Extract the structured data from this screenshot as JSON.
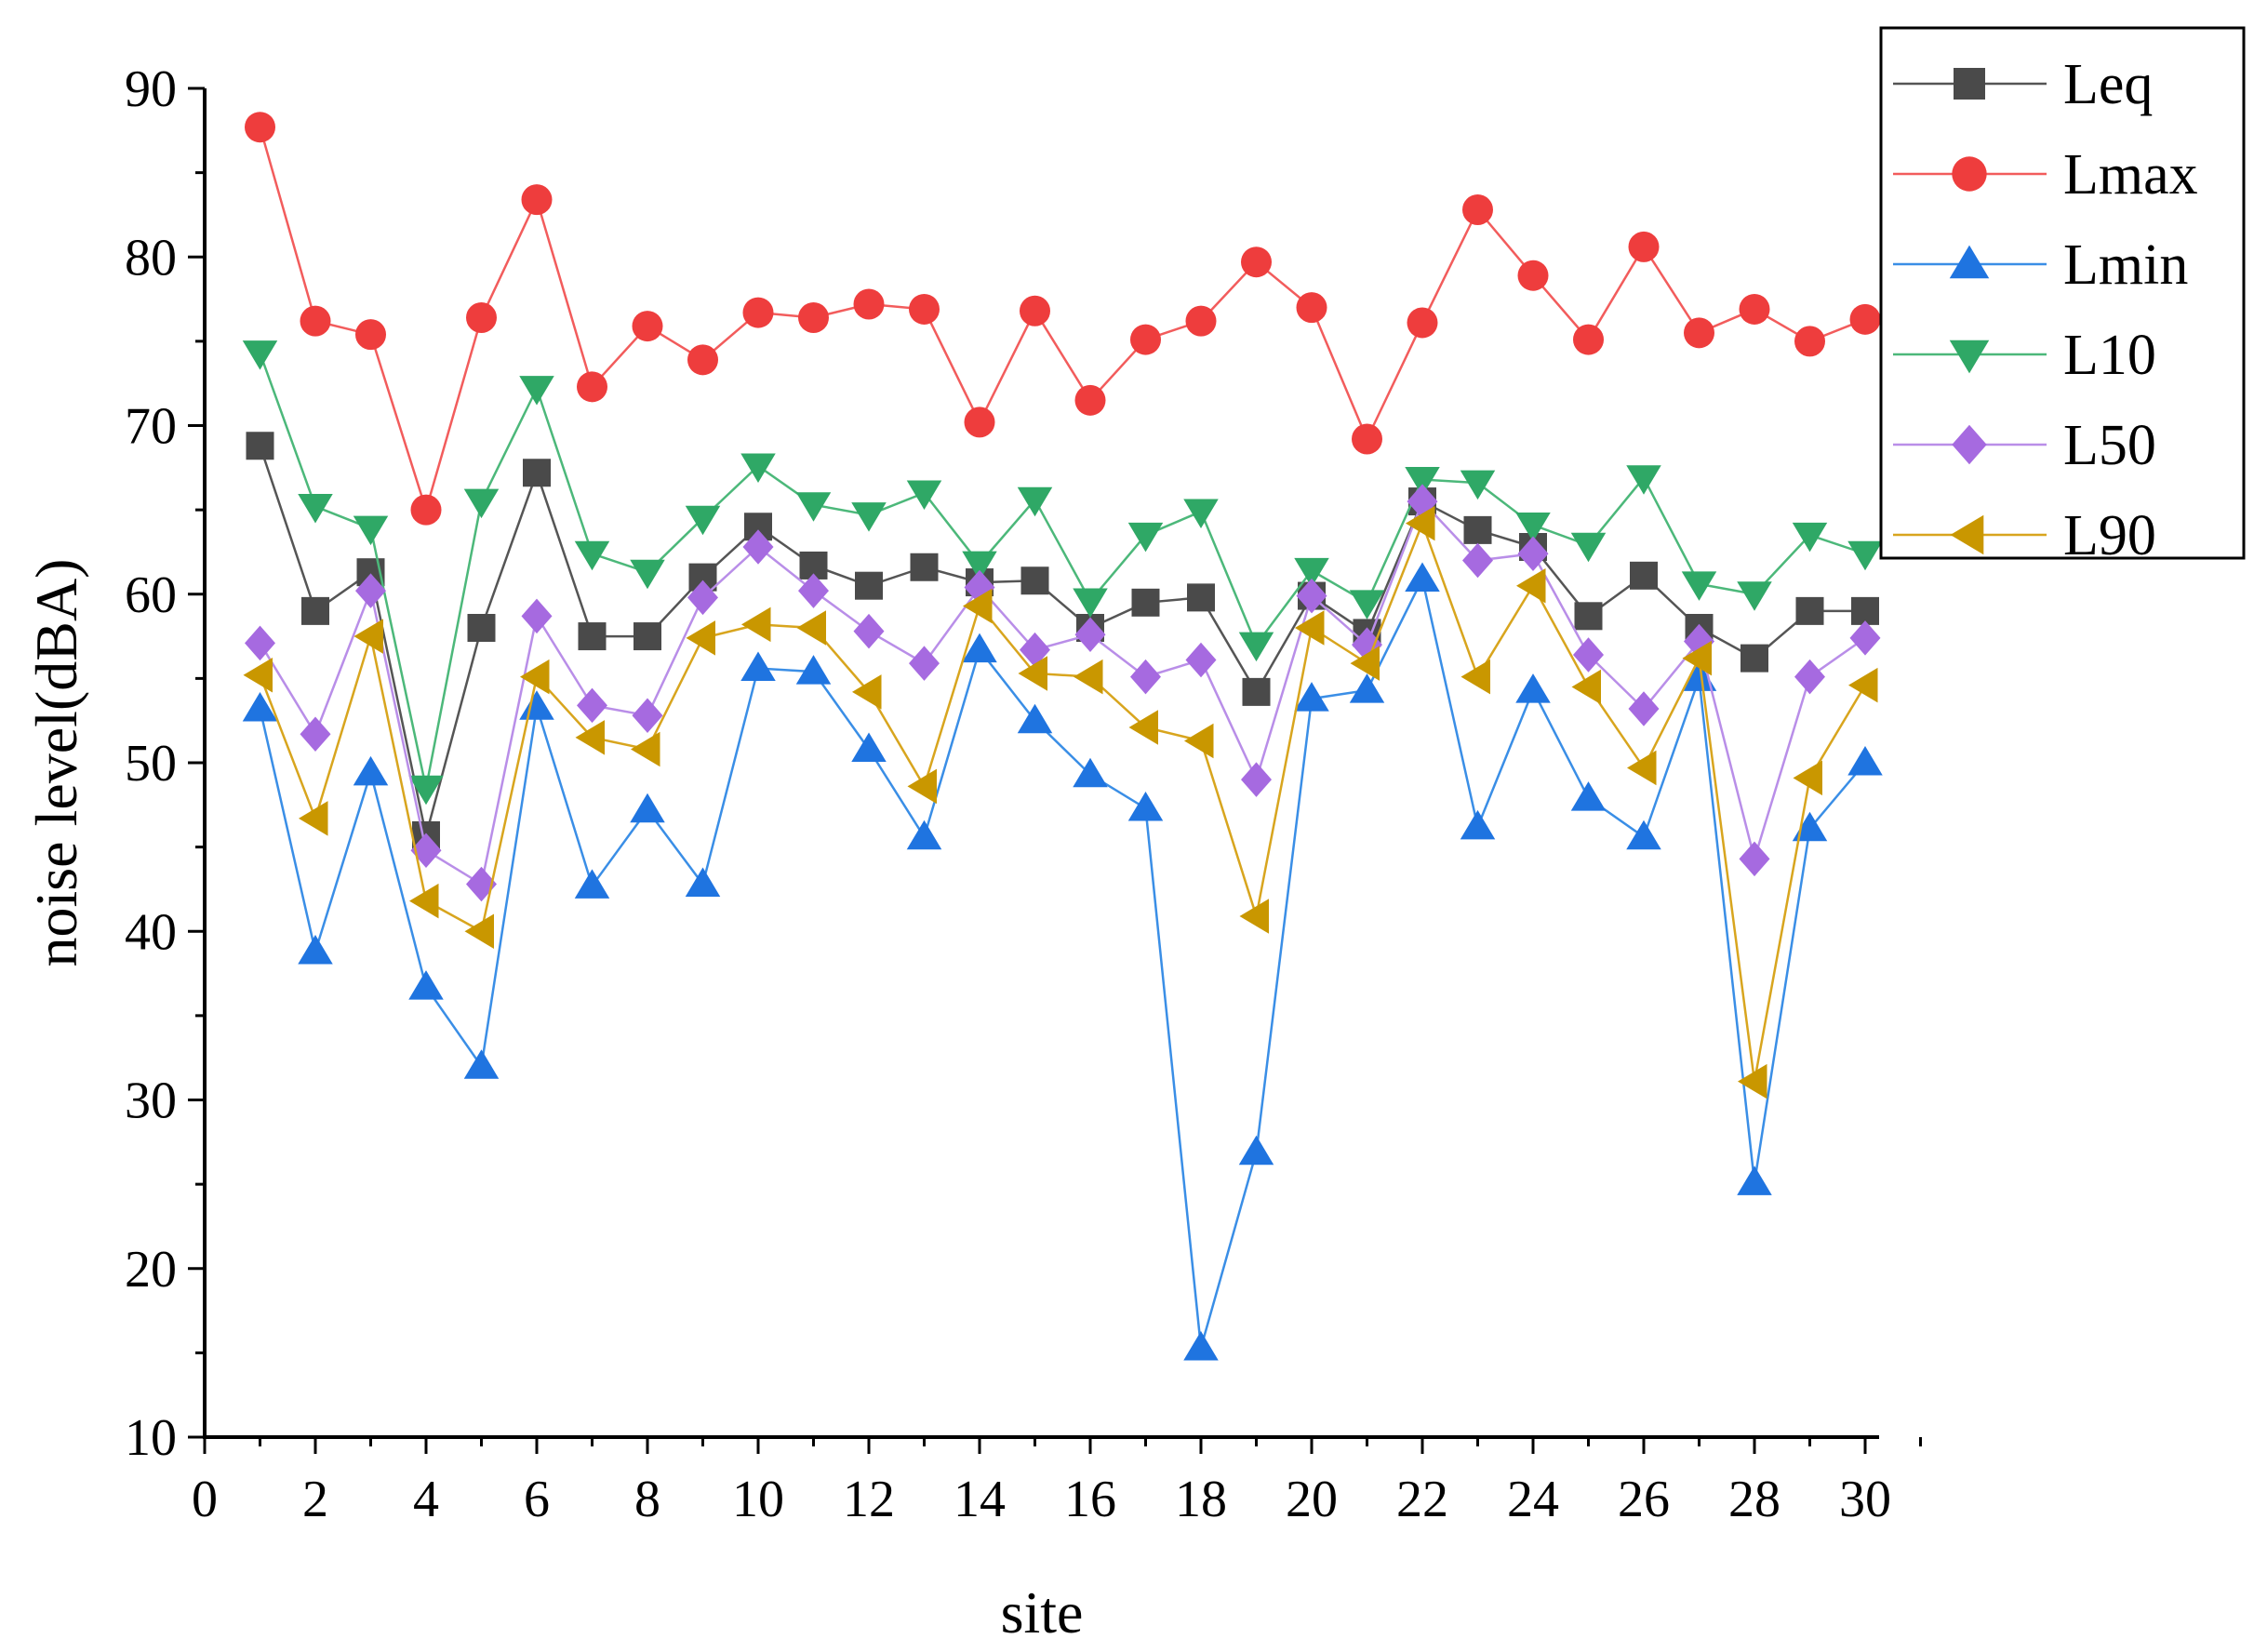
{
  "chart_data": {
    "type": "line",
    "title": "",
    "xlabel": "site",
    "ylabel": "noise level(dBA)",
    "xlim": [
      0,
      31
    ],
    "ylim": [
      10,
      90
    ],
    "x_ticks": [
      0,
      2,
      4,
      6,
      8,
      10,
      12,
      14,
      16,
      18,
      20,
      22,
      24,
      26,
      28,
      30
    ],
    "y_ticks": [
      10,
      20,
      30,
      40,
      50,
      60,
      70,
      80,
      90
    ],
    "legend_position": "top-right",
    "x": [
      1,
      2,
      3,
      4,
      5,
      6,
      7,
      8,
      9,
      10,
      11,
      12,
      13,
      14,
      15,
      16,
      17,
      18,
      19,
      20,
      21,
      22,
      23,
      24,
      25,
      26,
      27,
      28,
      29,
      30
    ],
    "series": [
      {
        "name": "Leq",
        "marker": "square",
        "line_color": "#555555",
        "marker_color": "#4a4a4a",
        "values": [
          68.8,
          59.0,
          61.3,
          45.7,
          58.0,
          67.2,
          57.5,
          57.5,
          61.0,
          64.0,
          61.7,
          60.5,
          61.6,
          60.7,
          60.8,
          58.0,
          59.5,
          59.8,
          54.2,
          59.9,
          57.7,
          65.5,
          63.8,
          62.8,
          58.7,
          61.1,
          58.0,
          56.2,
          59.0,
          59.0
        ]
      },
      {
        "name": "Lmax",
        "marker": "circle",
        "line_color": "#f25c5c",
        "marker_color": "#ee3d3d",
        "values": [
          87.7,
          76.2,
          75.4,
          65.0,
          76.4,
          83.4,
          72.3,
          75.9,
          73.9,
          76.7,
          76.4,
          77.2,
          76.9,
          70.2,
          76.8,
          71.5,
          75.1,
          76.2,
          79.7,
          77.0,
          69.2,
          76.1,
          82.8,
          78.9,
          75.1,
          80.6,
          75.5,
          76.9,
          75.0,
          76.3
        ]
      },
      {
        "name": "Lmin",
        "marker": "triangle-up",
        "line_color": "#3a8ee6",
        "marker_color": "#1f74e0",
        "values": [
          53.2,
          38.8,
          49.4,
          36.7,
          32.0,
          53.3,
          42.7,
          47.2,
          42.8,
          55.6,
          55.4,
          50.8,
          45.6,
          56.7,
          52.5,
          49.3,
          47.3,
          15.3,
          26.9,
          53.8,
          54.3,
          60.9,
          46.2,
          54.3,
          47.9,
          45.6,
          55.0,
          25.1,
          46.1,
          50.0
        ]
      },
      {
        "name": "L10",
        "marker": "triangle-down",
        "line_color": "#4cb87a",
        "marker_color": "#2fa866",
        "values": [
          74.3,
          65.2,
          63.9,
          48.5,
          65.5,
          72.2,
          62.4,
          61.3,
          64.5,
          67.6,
          65.3,
          64.7,
          66.0,
          61.8,
          65.6,
          59.6,
          63.5,
          64.9,
          57.0,
          61.4,
          59.5,
          66.8,
          66.6,
          64.1,
          62.9,
          66.9,
          60.6,
          60.0,
          63.5,
          62.4
        ]
      },
      {
        "name": "L50",
        "marker": "diamond",
        "line_color": "#b98ee8",
        "marker_color": "#a66ae0",
        "values": [
          57.1,
          51.7,
          60.2,
          44.8,
          42.8,
          58.7,
          53.4,
          52.8,
          59.8,
          62.8,
          60.2,
          57.8,
          55.9,
          60.4,
          56.7,
          57.6,
          55.1,
          56.1,
          49.0,
          59.9,
          57.0,
          65.5,
          62.0,
          62.4,
          56.4,
          53.2,
          57.2,
          44.3,
          55.1,
          57.4
        ]
      },
      {
        "name": "L90",
        "marker": "triangle-left",
        "line_color": "#d8a51e",
        "marker_color": "#c99700",
        "values": [
          55.2,
          46.7,
          57.5,
          41.8,
          40.0,
          55.1,
          51.5,
          50.8,
          57.4,
          58.2,
          58.0,
          54.2,
          48.6,
          59.3,
          55.3,
          55.1,
          52.1,
          51.3,
          40.9,
          58.0,
          55.9,
          64.2,
          55.1,
          60.5,
          54.5,
          49.7,
          56.2,
          31.1,
          49.1,
          54.6
        ]
      }
    ]
  }
}
